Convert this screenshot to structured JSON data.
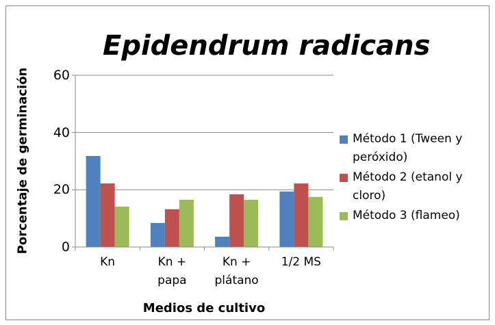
{
  "chart_data": {
    "type": "bar",
    "title": "Epidendrum radicans",
    "x_label": "Medios de cultivo",
    "y_label": "Porcentaje de germinación",
    "categories": [
      "Kn",
      "Kn + papa",
      "Kn + plátano",
      "1/2 MS"
    ],
    "series": [
      {
        "name": "Método 1 (Tween y peróxido)",
        "color": "#4f81bd",
        "values": [
          31.8,
          8.4,
          3.6,
          19.4
        ]
      },
      {
        "name": "Método 2 (etanol y cloro)",
        "color": "#c0504d",
        "values": [
          22.2,
          13.2,
          18.4,
          22.2
        ]
      },
      {
        "name": "Método 3 (flameo)",
        "color": "#9bbb59",
        "values": [
          14.1,
          16.5,
          16.5,
          17.5
        ]
      }
    ],
    "ylim": [
      0,
      60
    ],
    "yticks": [
      0,
      20,
      40,
      60
    ],
    "grid": true,
    "legend": "right"
  }
}
